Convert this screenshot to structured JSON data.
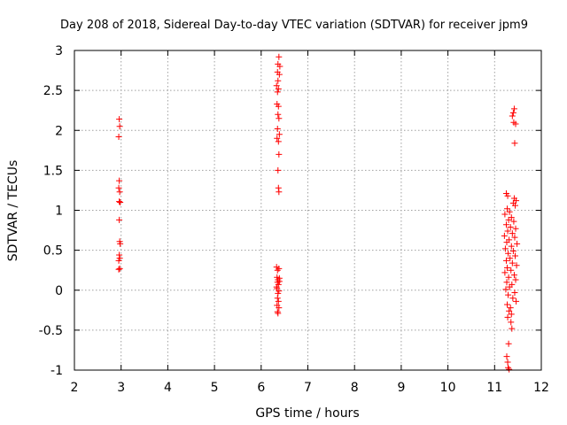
{
  "chart_data": {
    "type": "scatter",
    "title": "Day 208 of 2018, Sidereal Day-to-day VTEC variation (SDTVAR) for receiver jpm9",
    "xlabel": "GPS time / hours",
    "ylabel": "SDTVAR / TECUs",
    "xlim": [
      2,
      12
    ],
    "ylim": [
      -1,
      3
    ],
    "xticks": [
      "2",
      "3",
      "4",
      "5",
      "6",
      "7",
      "8",
      "9",
      "10",
      "11",
      "12"
    ],
    "yticks": [
      "-1",
      "-0.5",
      "0",
      "0.5",
      "1",
      "1.5",
      "2",
      "2.5",
      "3"
    ],
    "grid": true,
    "marker": "+",
    "color": "#ff0000",
    "points": [
      [
        2.96,
        2.14
      ],
      [
        2.97,
        2.05
      ],
      [
        2.95,
        1.92
      ],
      [
        2.96,
        1.37
      ],
      [
        2.95,
        1.28
      ],
      [
        2.97,
        1.23
      ],
      [
        2.96,
        1.11
      ],
      [
        2.98,
        1.1
      ],
      [
        2.96,
        0.88
      ],
      [
        2.97,
        0.61
      ],
      [
        2.98,
        0.58
      ],
      [
        2.96,
        0.44
      ],
      [
        2.97,
        0.4
      ],
      [
        2.95,
        0.37
      ],
      [
        2.97,
        0.27
      ],
      [
        2.95,
        0.26
      ],
      [
        6.38,
        2.92
      ],
      [
        6.36,
        2.83
      ],
      [
        6.4,
        2.8
      ],
      [
        6.35,
        2.73
      ],
      [
        6.39,
        2.7
      ],
      [
        6.36,
        2.62
      ],
      [
        6.33,
        2.56
      ],
      [
        6.37,
        2.52
      ],
      [
        6.35,
        2.48
      ],
      [
        6.34,
        2.33
      ],
      [
        6.37,
        2.3
      ],
      [
        6.36,
        2.2
      ],
      [
        6.38,
        2.15
      ],
      [
        6.35,
        2.02
      ],
      [
        6.39,
        1.95
      ],
      [
        6.34,
        1.9
      ],
      [
        6.37,
        1.86
      ],
      [
        6.38,
        1.7
      ],
      [
        6.36,
        1.5
      ],
      [
        6.37,
        1.28
      ],
      [
        6.38,
        1.23
      ],
      [
        6.33,
        0.29
      ],
      [
        6.35,
        0.25
      ],
      [
        6.38,
        0.27
      ],
      [
        6.34,
        0.16
      ],
      [
        6.36,
        0.13
      ],
      [
        6.39,
        0.15
      ],
      [
        6.35,
        0.1
      ],
      [
        6.37,
        0.07
      ],
      [
        6.34,
        0.02
      ],
      [
        6.38,
        -0.01
      ],
      [
        6.36,
        -0.04
      ],
      [
        6.35,
        -0.1
      ],
      [
        6.37,
        -0.14
      ],
      [
        6.34,
        -0.19
      ],
      [
        6.38,
        -0.22
      ],
      [
        6.35,
        -0.27
      ],
      [
        6.36,
        -0.29
      ],
      [
        6.33,
        0.04
      ],
      [
        6.39,
        0.11
      ],
      [
        11.42,
        2.27
      ],
      [
        11.4,
        2.22
      ],
      [
        11.38,
        2.18
      ],
      [
        11.41,
        2.1
      ],
      [
        11.45,
        2.08
      ],
      [
        11.43,
        1.84
      ],
      [
        11.25,
        1.21
      ],
      [
        11.28,
        1.18
      ],
      [
        11.42,
        1.15
      ],
      [
        11.46,
        1.12
      ],
      [
        11.4,
        1.09
      ],
      [
        11.44,
        1.06
      ],
      [
        11.27,
        1.02
      ],
      [
        11.32,
        0.98
      ],
      [
        11.22,
        0.95
      ],
      [
        11.36,
        0.91
      ],
      [
        11.3,
        0.88
      ],
      [
        11.41,
        0.86
      ],
      [
        11.25,
        0.82
      ],
      [
        11.34,
        0.79
      ],
      [
        11.45,
        0.77
      ],
      [
        11.28,
        0.74
      ],
      [
        11.38,
        0.71
      ],
      [
        11.21,
        0.68
      ],
      [
        11.43,
        0.66
      ],
      [
        11.31,
        0.63
      ],
      [
        11.26,
        0.6
      ],
      [
        11.48,
        0.58
      ],
      [
        11.36,
        0.55
      ],
      [
        11.23,
        0.52
      ],
      [
        11.4,
        0.49
      ],
      [
        11.29,
        0.46
      ],
      [
        11.44,
        0.43
      ],
      [
        11.33,
        0.4
      ],
      [
        11.25,
        0.37
      ],
      [
        11.38,
        0.34
      ],
      [
        11.47,
        0.31
      ],
      [
        11.27,
        0.28
      ],
      [
        11.35,
        0.25
      ],
      [
        11.22,
        0.22
      ],
      [
        11.42,
        0.19
      ],
      [
        11.3,
        0.16
      ],
      [
        11.45,
        0.13
      ],
      [
        11.26,
        0.1
      ],
      [
        11.37,
        0.07
      ],
      [
        11.32,
        0.04
      ],
      [
        11.24,
        0.01
      ],
      [
        11.43,
        -0.03
      ],
      [
        11.29,
        -0.06
      ],
      [
        11.39,
        -0.1
      ],
      [
        11.46,
        -0.14
      ],
      [
        11.27,
        -0.18
      ],
      [
        11.34,
        -0.22
      ],
      [
        11.31,
        -0.26
      ],
      [
        11.36,
        -0.3
      ],
      [
        11.28,
        -0.34
      ],
      [
        11.35,
        -0.4
      ],
      [
        11.37,
        -0.48
      ],
      [
        11.3,
        -0.67
      ],
      [
        11.26,
        -0.83
      ],
      [
        11.28,
        -0.9
      ],
      [
        11.29,
        -0.97
      ],
      [
        11.31,
        -0.99
      ]
    ]
  }
}
